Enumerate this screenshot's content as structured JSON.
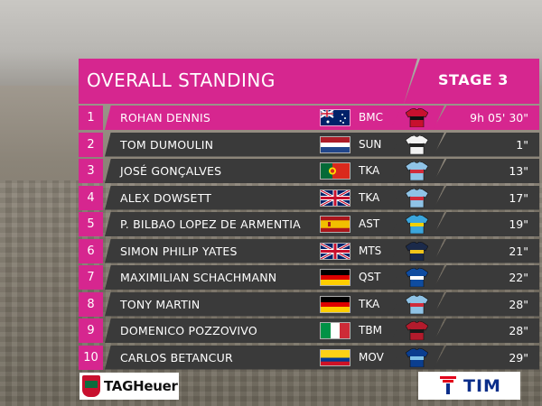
{
  "header": {
    "title": "OVERALL STANDING",
    "stage": "STAGE 3"
  },
  "rows": [
    {
      "pos": "1",
      "name": "ROHAN DENNIS",
      "flag": "australia-flag-icon",
      "team": "BMC",
      "jersey": "bmc-jersey-icon",
      "time": "9h 05' 30\""
    },
    {
      "pos": "2",
      "name": "TOM DUMOULIN",
      "flag": "netherlands-flag-icon",
      "team": "SUN",
      "jersey": "sunweb-jersey-icon",
      "time": "1\""
    },
    {
      "pos": "3",
      "name": "JOSÉ GONÇALVES",
      "flag": "portugal-flag-icon",
      "team": "TKA",
      "jersey": "katusha-jersey-icon",
      "time": "13\""
    },
    {
      "pos": "4",
      "name": "ALEX DOWSETT",
      "flag": "uk-flag-icon",
      "team": "TKA",
      "jersey": "katusha-jersey-icon",
      "time": "17\""
    },
    {
      "pos": "5",
      "name": "P. BILBAO LOPEZ DE ARMENTIA",
      "flag": "spain-flag-icon",
      "team": "AST",
      "jersey": "astana-jersey-icon",
      "time": "19\""
    },
    {
      "pos": "6",
      "name": "SIMON PHILIP YATES",
      "flag": "uk-flag-icon",
      "team": "MTS",
      "jersey": "mitchelton-jersey-icon",
      "time": "21\""
    },
    {
      "pos": "7",
      "name": "MAXIMILIAN SCHACHMANN",
      "flag": "germany-flag-icon",
      "team": "QST",
      "jersey": "quickstep-jersey-icon",
      "time": "22\""
    },
    {
      "pos": "8",
      "name": "TONY MARTIN",
      "flag": "germany-flag-icon",
      "team": "TKA",
      "jersey": "katusha-jersey-icon",
      "time": "28\""
    },
    {
      "pos": "9",
      "name": "DOMENICO POZZOVIVO",
      "flag": "italy-flag-icon",
      "team": "TBM",
      "jersey": "bahrain-merida-jersey-icon",
      "time": "28\""
    },
    {
      "pos": "10",
      "name": "CARLOS BETANCUR",
      "flag": "colombia-flag-icon",
      "team": "MOV",
      "jersey": "movistar-jersey-icon",
      "time": "29\""
    }
  ],
  "sponsors": {
    "left": "TAGHeuer",
    "right": "TIM"
  },
  "colors": {
    "accent": "#d6268f",
    "row_dark": "#3a3a3a"
  }
}
